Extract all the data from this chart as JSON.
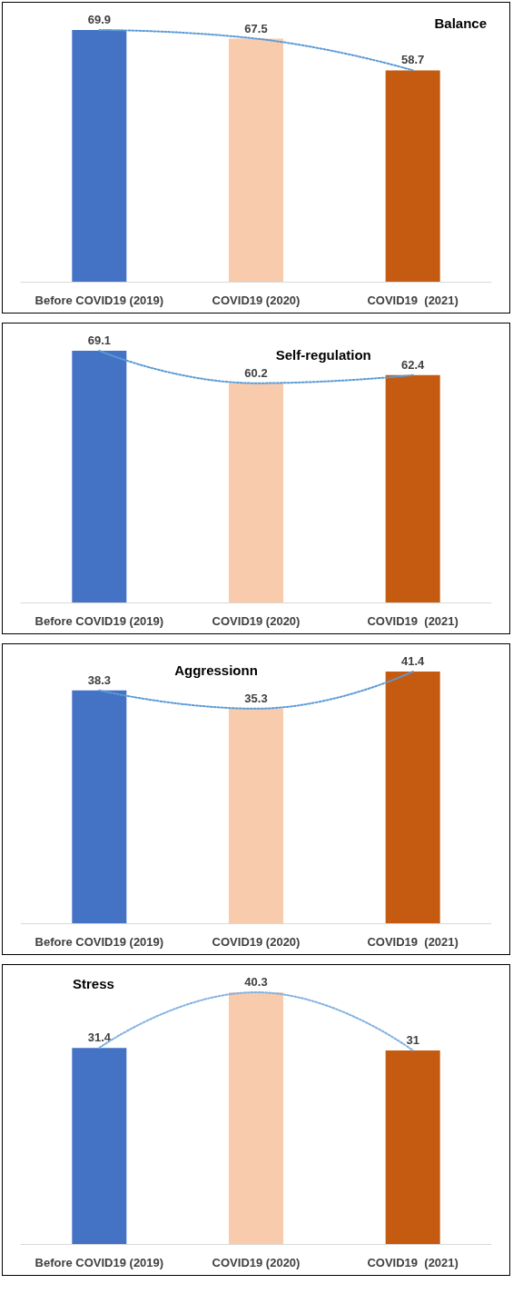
{
  "chart_data": [
    {
      "type": "bar",
      "title": "Balance",
      "categories": [
        "Before COVID19 (2019)",
        "COVID19 (2020)",
        "COVID19  (2021)"
      ],
      "tick_labels": "x",
      "grid": false,
      "series": [
        {
          "colors": [
            "#4472c4",
            "#f8cbad",
            "#c55a11"
          ],
          "values": [
            69.9,
            67.5,
            58.7
          ],
          "value_labels": [
            "69.9",
            "67.5",
            "58.7"
          ]
        },
        {
          "type": "line",
          "color": "#5b9bd5",
          "line_style": "dotted",
          "marker": "none",
          "values": [
            69.9,
            67.5,
            58.7
          ]
        }
      ]
    },
    {
      "type": "bar",
      "title": "Self-regulation",
      "categories": [
        "Before COVID19 (2019)",
        "COVID19 (2020)",
        "COVID19  (2021)"
      ],
      "tick_labels": "x",
      "grid": false,
      "series": [
        {
          "colors": [
            "#4472c4",
            "#f8cbad",
            "#c55a11"
          ],
          "values": [
            69.1,
            60.2,
            62.4
          ],
          "value_labels": [
            "69.1",
            "60.2",
            "62.4"
          ]
        },
        {
          "type": "line",
          "color": "#5b9bd5",
          "line_style": "dotted",
          "marker": "none",
          "values": [
            69.1,
            60.2,
            62.4
          ]
        }
      ]
    },
    {
      "type": "bar",
      "title": "Aggressionn",
      "categories": [
        "Before COVID19 (2019)",
        "COVID19 (2020)",
        "COVID19  (2021)"
      ],
      "tick_labels": "x",
      "grid": false,
      "series": [
        {
          "colors": [
            "#4472c4",
            "#f8cbad",
            "#c55a11"
          ],
          "values": [
            38.3,
            35.3,
            41.4
          ],
          "value_labels": [
            "38.3",
            "35.3",
            "41.4"
          ]
        },
        {
          "type": "line",
          "color": "#5b9bd5",
          "line_style": "dotted",
          "marker": "none",
          "values": [
            38.3,
            35.3,
            41.4
          ]
        }
      ]
    },
    {
      "type": "bar",
      "title": "Stress",
      "categories": [
        "Before COVID19 (2019)",
        "COVID19 (2020)",
        "COVID19  (2021)"
      ],
      "tick_labels": "x",
      "grid": false,
      "series": [
        {
          "colors": [
            "#4472c4",
            "#f8cbad",
            "#c55a11"
          ],
          "values": [
            31.4,
            40.3,
            31
          ],
          "value_labels": [
            "31.4",
            "40.3",
            "31"
          ]
        },
        {
          "type": "line",
          "color": "#7fb0e0",
          "line_style": "dotted",
          "marker": "none",
          "values": [
            31.4,
            40.3,
            31
          ]
        }
      ]
    }
  ]
}
